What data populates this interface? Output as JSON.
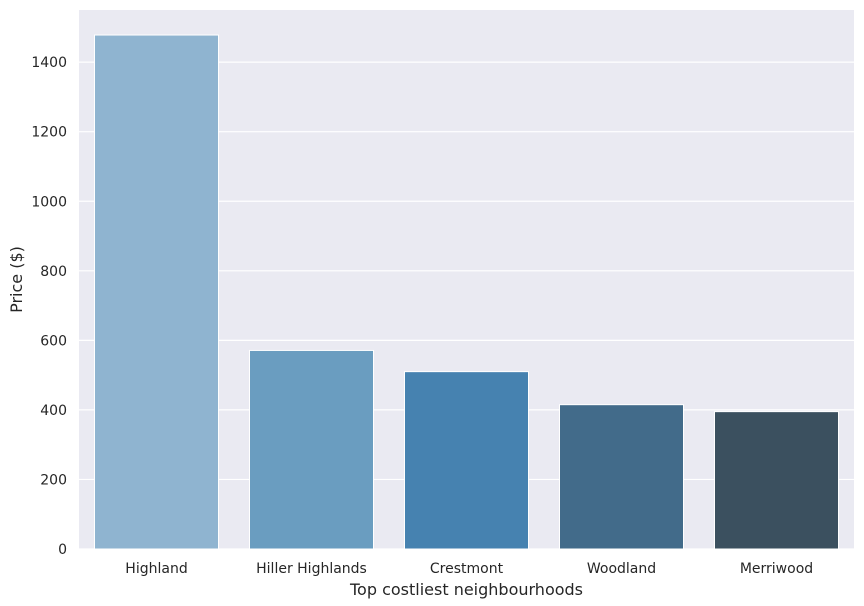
{
  "chart_data": {
    "type": "bar",
    "title": "",
    "xlabel": "Top costliest neighbourhoods",
    "ylabel": "Price ($)",
    "categories": [
      "Highland",
      "Hiller Highlands",
      "Crestmont",
      "Woodland",
      "Merriwood"
    ],
    "values": [
      1478,
      571,
      510,
      415,
      395
    ],
    "ylim": [
      0,
      1550
    ],
    "yticks": [
      0,
      200,
      400,
      600,
      800,
      1000,
      1200,
      1400
    ],
    "ytick_labels": [
      "0",
      "200",
      "400",
      "600",
      "800",
      "1000",
      "1200",
      "1400"
    ],
    "grid": true,
    "legend": "none",
    "colors": {
      "background": "#eaeaf2",
      "grid": "#ffffff",
      "bars": [
        "#8fb4d0",
        "#6a9dc0",
        "#4682b0",
        "#426b8a",
        "#3b505f"
      ]
    }
  }
}
